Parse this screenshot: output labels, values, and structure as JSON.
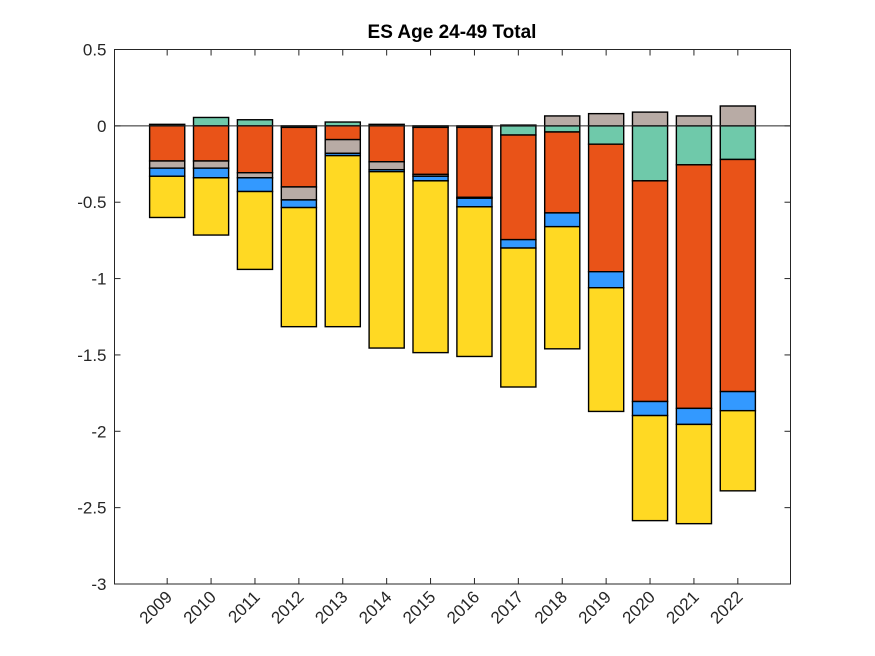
{
  "chart_data": {
    "type": "bar",
    "stacked": true,
    "title": "ES  Age 24-49  Total",
    "xlabel": "",
    "ylabel": "",
    "ylim": [
      -3,
      0.5
    ],
    "xlim": [
      2007.8,
      2023.2
    ],
    "yticks": [
      0.5,
      0,
      -0.5,
      -1,
      -1.5,
      -2,
      -2.5,
      -3
    ],
    "ytick_labels": [
      "0.5",
      "0",
      "-0.5",
      "-1",
      "-1.5",
      "-2",
      "-2.5",
      "-3"
    ],
    "categories": [
      "2009",
      "2010",
      "2011",
      "2012",
      "2013",
      "2014",
      "2015",
      "2016",
      "2017",
      "2018",
      "2019",
      "2020",
      "2021",
      "2022"
    ],
    "grid": false,
    "legend": null,
    "series": [
      {
        "name": "series-1-green",
        "color": "#6FC9AA",
        "values": [
          0.01,
          0.055,
          0.04,
          -0.01,
          0.025,
          0.01,
          -0.01,
          -0.01,
          -0.06,
          -0.04,
          -0.12,
          -0.36,
          -0.255,
          -0.22
        ]
      },
      {
        "name": "series-2-orange",
        "color": "#E95318",
        "values": [
          -0.23,
          -0.23,
          -0.307,
          -0.39,
          -0.09,
          -0.235,
          -0.308,
          -0.458,
          -0.685,
          -0.53,
          -0.835,
          -1.445,
          -1.595,
          -1.52
        ]
      },
      {
        "name": "series-3-gray",
        "color": "#B8ABA5",
        "values": [
          -0.047,
          -0.047,
          -0.033,
          -0.085,
          -0.09,
          -0.052,
          -0.012,
          -0.006,
          0.005,
          0.065,
          0.08,
          0.09,
          0.065,
          0.13
        ]
      },
      {
        "name": "series-4-blue",
        "color": "#3399FF",
        "values": [
          -0.053,
          -0.063,
          -0.09,
          -0.05,
          -0.015,
          -0.013,
          -0.03,
          -0.056,
          -0.055,
          -0.09,
          -0.105,
          -0.092,
          -0.105,
          -0.125
        ]
      },
      {
        "name": "series-5-yellow",
        "color": "#FFD923",
        "values": [
          -0.27,
          -0.375,
          -0.51,
          -0.78,
          -1.12,
          -1.155,
          -1.125,
          -0.98,
          -0.91,
          -0.8,
          -0.81,
          -0.688,
          -0.65,
          -0.525
        ]
      }
    ]
  }
}
